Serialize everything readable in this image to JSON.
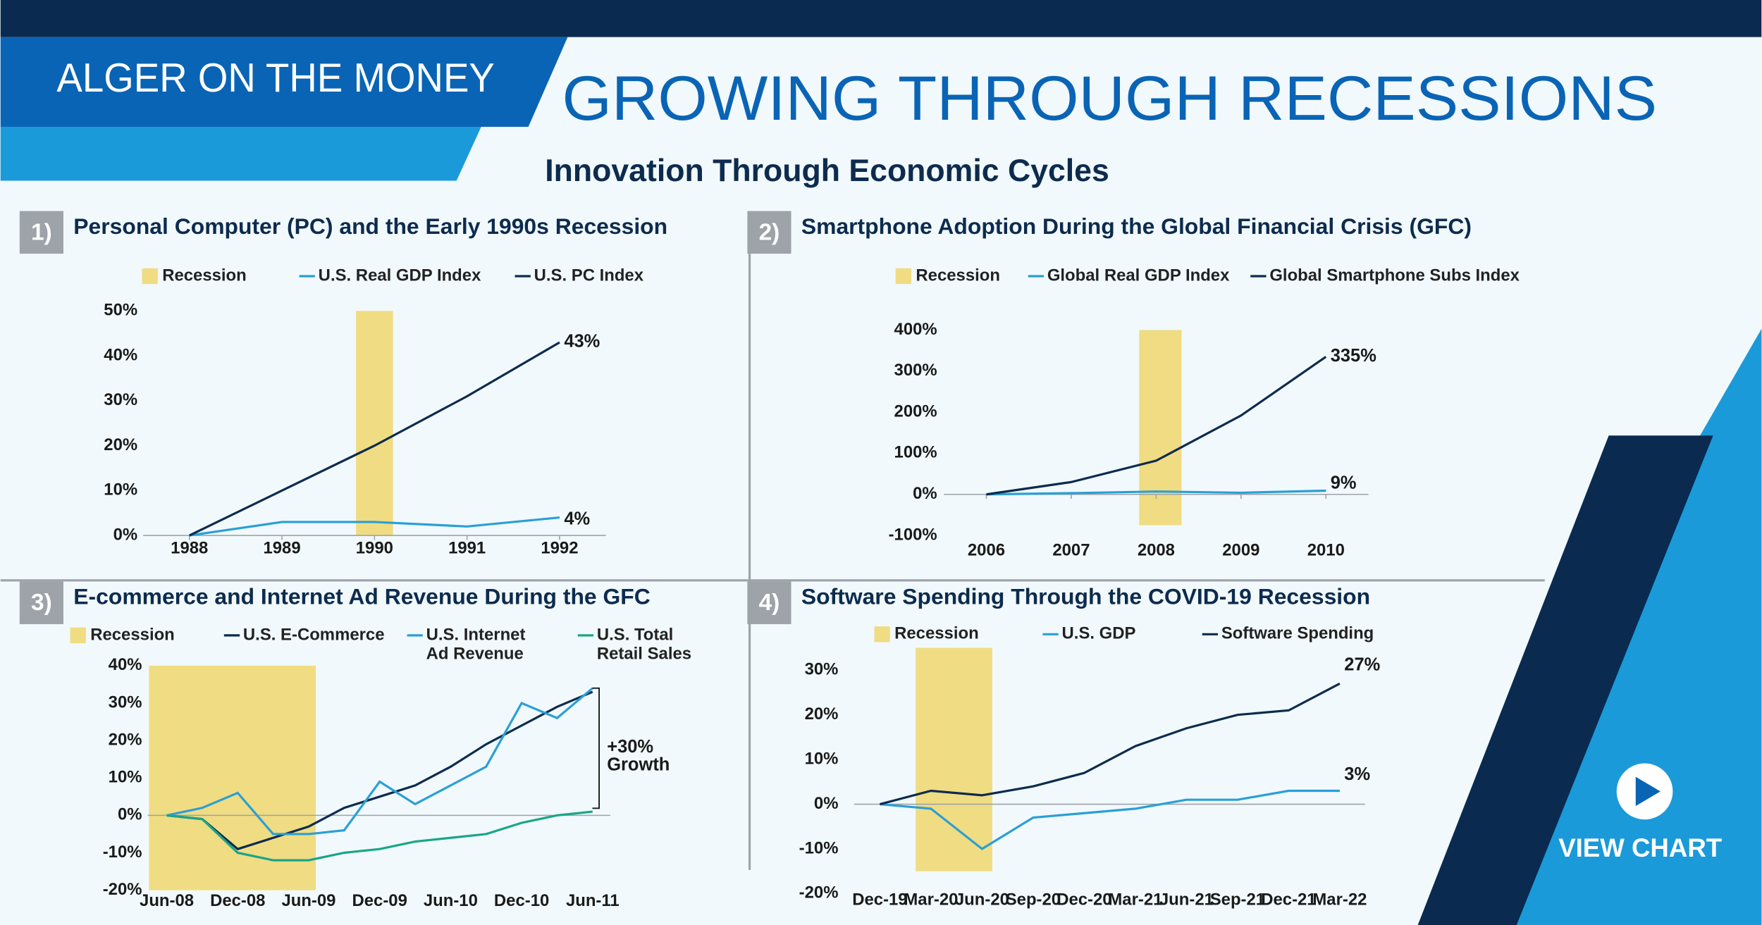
{
  "header": {
    "brand": "ALGER ON THE MONEY",
    "title": "GROWING THROUGH RECESSIONS",
    "subtitle": "Innovation Through Economic Cycles"
  },
  "button": {
    "label": "VIEW CHART"
  },
  "chart_data": [
    {
      "type": "line",
      "number": "1)",
      "title": "Personal Computer (PC) and the Early 1990s Recession",
      "recession": {
        "name": "Recession",
        "color": "#f0dc82",
        "x": [
          1989.8,
          1990.2
        ],
        "y": [
          0,
          50
        ]
      },
      "x": [
        1988,
        1989,
        1990,
        1991,
        1992
      ],
      "xlim": [
        1987.5,
        1992.5
      ],
      "xticks": [
        1988,
        1989,
        1990,
        1991,
        1992
      ],
      "ylim": [
        0,
        50
      ],
      "yticks": [
        {
          "value": 0,
          "label": "0%"
        },
        {
          "value": 10,
          "label": "10%"
        },
        {
          "value": 20,
          "label": "20%"
        },
        {
          "value": 30,
          "label": "30%"
        },
        {
          "value": 40,
          "label": "40%"
        },
        {
          "value": 50,
          "label": "50%"
        }
      ],
      "series": [
        {
          "name": "U.S. Real GDP Index",
          "color": "#2a9fd6",
          "values": [
            0,
            3,
            3,
            2,
            4
          ],
          "value_labels": [
            null,
            null,
            null,
            null,
            "4%"
          ]
        },
        {
          "name": "U.S. PC Index",
          "color": "#0d2b4e",
          "values": [
            0,
            10,
            20,
            31,
            43
          ],
          "value_labels": [
            null,
            null,
            null,
            null,
            "43%"
          ]
        }
      ]
    },
    {
      "type": "line",
      "number": "2)",
      "title": "Smartphone Adoption During the Global Financial Crisis (GFC)",
      "recession": {
        "name": "Recession",
        "color": "#f0dc82",
        "x": [
          2007.8,
          2008.3
        ],
        "y": [
          -75,
          400
        ]
      },
      "x": [
        2006,
        2007,
        2008,
        2009,
        2010
      ],
      "xlim": [
        2005.5,
        2010.5
      ],
      "xticks": [
        2006,
        2007,
        2008,
        2009,
        2010
      ],
      "ylim": [
        -100,
        400
      ],
      "yticks": [
        {
          "value": -100,
          "label": "-100%"
        },
        {
          "value": 0,
          "label": "0%"
        },
        {
          "value": 100,
          "label": "100%"
        },
        {
          "value": 200,
          "label": "200%"
        },
        {
          "value": 300,
          "label": "300%"
        },
        {
          "value": 400,
          "label": "400%"
        }
      ],
      "series": [
        {
          "name": "Global Real GDP Index",
          "color": "#2a9fd6",
          "values": [
            0,
            3,
            7,
            4,
            9
          ],
          "value_labels": [
            null,
            null,
            null,
            null,
            "9%"
          ]
        },
        {
          "name": "Global Smartphone Subs Index",
          "color": "#0d2b4e",
          "values": [
            0,
            30,
            82,
            192,
            335
          ],
          "value_labels": [
            null,
            null,
            null,
            null,
            "335%"
          ]
        }
      ]
    },
    {
      "type": "line",
      "number": "3)",
      "title": "E-commerce and Internet Ad Revenue During the GFC",
      "recession": {
        "name": "Recession",
        "color": "#f0dc82",
        "x": [
          -0.5,
          4.2
        ],
        "y": [
          -20,
          40
        ]
      },
      "categories": [
        "Jun-08",
        null,
        "Dec-08",
        null,
        "Jun-09",
        null,
        "Dec-09",
        null,
        "Jun-10",
        null,
        "Dec-10",
        null,
        "Jun-11"
      ],
      "ylim": [
        -20,
        40
      ],
      "yticks": [
        {
          "value": -20,
          "label": "-20%"
        },
        {
          "value": -10,
          "label": "-10%"
        },
        {
          "value": 0,
          "label": "0%"
        },
        {
          "value": 10,
          "label": "10%"
        },
        {
          "value": 20,
          "label": "20%"
        },
        {
          "value": 30,
          "label": "30%"
        },
        {
          "value": 40,
          "label": "40%"
        }
      ],
      "annotation": [
        "+30%",
        "Growth"
      ],
      "series": [
        {
          "name": "U.S. E-Commerce",
          "color": "#0d2b4e",
          "values": [
            0,
            -1,
            -9,
            -6,
            -3,
            2,
            5,
            8,
            13,
            19,
            24,
            29,
            33
          ]
        },
        {
          "name": "U.S. Internet Ad Revenue",
          "color": "#2a9fd6",
          "values": [
            0,
            2,
            6,
            -5,
            -5,
            -4,
            9,
            3,
            8,
            13,
            30,
            26,
            34
          ]
        },
        {
          "name": "U.S. Total Retail Sales",
          "color": "#1aa58a",
          "values": [
            0,
            -1,
            -10,
            -12,
            -12,
            -10,
            -9,
            -7,
            -6,
            -5,
            -2,
            0,
            1
          ]
        }
      ]
    },
    {
      "type": "line",
      "number": "4)",
      "title": "Software Spending Through the COVID-19 Recession",
      "recession": {
        "name": "Recession",
        "color": "#f0dc82",
        "x": [
          0.7,
          2.2
        ],
        "y": [
          -15,
          35
        ]
      },
      "categories": [
        "Dec-19",
        "Mar-20",
        "Jun-20",
        "Sep-20",
        "Dec-20",
        "Mar-21",
        "Jun-21",
        "Sep-21",
        "Dec-21",
        "Mar-22"
      ],
      "ylim": [
        -20,
        30
      ],
      "yticks": [
        {
          "value": -20,
          "label": "-20%"
        },
        {
          "value": -10,
          "label": "-10%"
        },
        {
          "value": 0,
          "label": "0%"
        },
        {
          "value": 10,
          "label": "10%"
        },
        {
          "value": 20,
          "label": "20%"
        },
        {
          "value": 30,
          "label": "30%"
        }
      ],
      "series": [
        {
          "name": "U.S. GDP",
          "color": "#2a9fd6",
          "values": [
            0,
            -1,
            -10,
            -3,
            -2,
            -1,
            1,
            1,
            3,
            3
          ],
          "value_labels": [
            null,
            null,
            null,
            null,
            null,
            null,
            null,
            null,
            null,
            "3%"
          ]
        },
        {
          "name": "Software Spending",
          "color": "#0d2b4e",
          "values": [
            0,
            3,
            2,
            4,
            7,
            13,
            17,
            20,
            21,
            27
          ],
          "value_labels": [
            null,
            null,
            null,
            null,
            null,
            null,
            null,
            null,
            null,
            "27%"
          ]
        }
      ]
    }
  ]
}
